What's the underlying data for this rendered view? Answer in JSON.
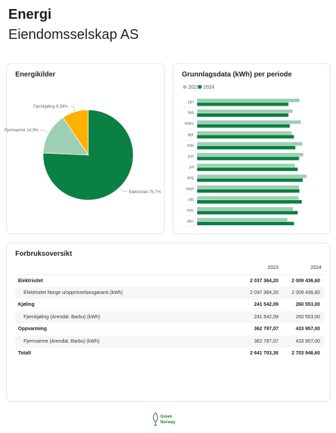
{
  "header": {
    "title": "Energi",
    "subtitle": "Eiendomsselskap AS"
  },
  "energy_card": {
    "title": "Energikilder"
  },
  "basis_card": {
    "title": "Grunnlagsdata (kWh) per periode"
  },
  "usage_card": {
    "title": "Forbruksoversikt",
    "columns": [
      "2023",
      "2024"
    ],
    "rows": [
      {
        "kind": "group",
        "label": "Elektrisitet",
        "v2023": "2 037 364,20",
        "v2024": "2 009 436,60"
      },
      {
        "kind": "sub",
        "label": "Elektrisitet Norge u/opprinnelsesgaranti (kWh)",
        "v2023": "2 037 364,20",
        "v2024": "2 009 436,60"
      },
      {
        "kind": "group",
        "label": "Kjøling",
        "v2023": "241 542,09",
        "v2024": "260 553,00"
      },
      {
        "kind": "sub",
        "label": "Fjernkjøling (Arendal, Barbu) (kWh)",
        "v2023": "241 542,09",
        "v2024": "260 553,00"
      },
      {
        "kind": "group",
        "label": "Oppvarming",
        "v2023": "362 797,07",
        "v2024": "433 957,00"
      },
      {
        "kind": "sub",
        "label": "Fjernvarme (Arendal, Barbu) (kWh)",
        "v2023": "362 797,07",
        "v2024": "433 957,00"
      },
      {
        "kind": "total",
        "label": "Totalt",
        "v2023": "2 641 703,36",
        "v2024": "2 703 946,60"
      }
    ]
  },
  "footer": {
    "logo_line1": "Green",
    "logo_line2": "Norway",
    "logo_icon": "plug-leaf-icon"
  },
  "colors": {
    "dark_green": "#0b8043",
    "light_green": "#9ccfb3",
    "orange": "#ffb000"
  },
  "chart_data": [
    {
      "type": "pie",
      "title": "Energikilder",
      "slices": [
        {
          "label": "Elektrisitet",
          "value": 75.7,
          "display": "Elektrisitet 75,7%",
          "color": "#0b8043"
        },
        {
          "label": "Fjernvarme",
          "value": 14.9,
          "display": "Fjernvarme 14,9%",
          "color": "#9ccfb3"
        },
        {
          "label": "Fjernkjøling",
          "value": 9.39,
          "display": "Fjernkjøling 9,39%",
          "color": "#ffb000"
        }
      ]
    },
    {
      "type": "bar",
      "orientation": "horizontal",
      "title": "Grunnlagsdata (kWh) per periode",
      "categories": [
        "jan",
        "feb",
        "mars",
        "apr",
        "mai",
        "jun",
        "jul",
        "avg",
        "sept",
        "okt",
        "nov",
        "des"
      ],
      "series": [
        {
          "name": "2023",
          "color": "#9ccfb3",
          "values": [
            222,
            207,
            225,
            205,
            228,
            230,
            212,
            237,
            221,
            220,
            208,
            196
          ]
        },
        {
          "name": "2024",
          "color": "#0b8043",
          "values": [
            198,
            198,
            201,
            210,
            213,
            221,
            218,
            229,
            222,
            227,
            218,
            210
          ]
        }
      ],
      "legend": "top-left",
      "xaxis_visible": false
    }
  ]
}
